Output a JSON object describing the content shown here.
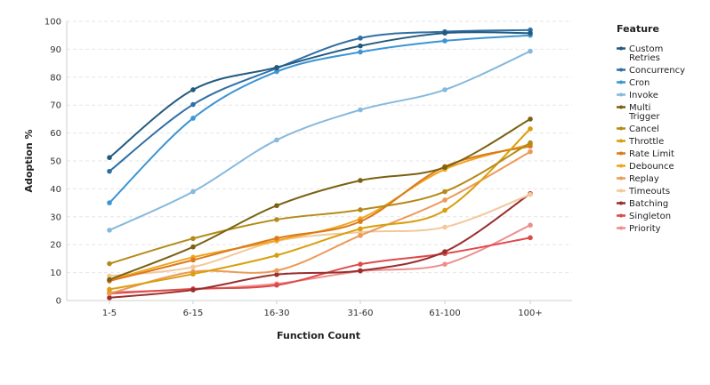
{
  "chart_data": {
    "type": "line",
    "xlabel": "Function Count",
    "ylabel": "Adoption %",
    "categories": [
      "1-5",
      "6-15",
      "16-30",
      "31-60",
      "61-100",
      "100+"
    ],
    "ylim": [
      0,
      100
    ],
    "yticks": [
      "0",
      "10",
      "20",
      "30",
      "40",
      "50",
      "60",
      "70",
      "80",
      "90",
      "100"
    ],
    "grid": true,
    "legend_title": "Feature",
    "legend_position": "right",
    "series": [
      {
        "name": "Custom Retries",
        "legend_lines": [
          "Custom",
          "Retries"
        ],
        "color": "#235a7e",
        "values": [
          51.2,
          75.5,
          83.5,
          91.2,
          95.8,
          95.8
        ]
      },
      {
        "name": "Concurrency",
        "legend_lines": [
          "Concurrency"
        ],
        "color": "#2f6fa6",
        "values": [
          46.3,
          70.2,
          83.2,
          94.0,
          96.3,
          96.9
        ]
      },
      {
        "name": "Cron",
        "legend_lines": [
          "Cron"
        ],
        "color": "#3c95d4",
        "values": [
          35.0,
          65.3,
          82.0,
          89.0,
          93.0,
          95.0
        ]
      },
      {
        "name": "Invoke",
        "legend_lines": [
          "Invoke"
        ],
        "color": "#86b9dc",
        "values": [
          25.2,
          39.0,
          57.5,
          68.3,
          75.5,
          89.3
        ]
      },
      {
        "name": "Multi Trigger",
        "legend_lines": [
          "Multi",
          "Trigger"
        ],
        "color": "#7a6212",
        "values": [
          7.5,
          19.2,
          34.0,
          43.0,
          47.7,
          65.0
        ]
      },
      {
        "name": "Cancel",
        "legend_lines": [
          "Cancel"
        ],
        "color": "#b48a18",
        "values": [
          13.2,
          22.2,
          29.0,
          32.5,
          39.0,
          56.5
        ]
      },
      {
        "name": "Throttle",
        "legend_lines": [
          "Throttle"
        ],
        "color": "#d99f0c",
        "values": [
          4.0,
          9.5,
          16.2,
          25.7,
          32.3,
          61.5
        ]
      },
      {
        "name": "Rate Limit",
        "legend_lines": [
          "Rate Limit"
        ],
        "color": "#db7a1c",
        "values": [
          7.0,
          14.5,
          22.3,
          28.3,
          48.0,
          55.3
        ]
      },
      {
        "name": "Debounce",
        "legend_lines": [
          "Debounce"
        ],
        "color": "#f0a51a",
        "values": [
          7.2,
          15.5,
          21.5,
          29.3,
          47.0,
          56.0
        ]
      },
      {
        "name": "Replay",
        "legend_lines": [
          "Replay"
        ],
        "color": "#ec9a58",
        "values": [
          2.5,
          10.3,
          10.7,
          23.3,
          36.0,
          53.3
        ]
      },
      {
        "name": "Timeouts",
        "legend_lines": [
          "Timeouts"
        ],
        "color": "#f3c89a",
        "values": [
          8.8,
          12.0,
          21.3,
          24.5,
          26.3,
          38.0
        ]
      },
      {
        "name": "Batching",
        "legend_lines": [
          "Batching"
        ],
        "color": "#9a2e2e",
        "values": [
          1.0,
          3.8,
          9.3,
          10.7,
          17.5,
          38.3
        ]
      },
      {
        "name": "Singleton",
        "legend_lines": [
          "Singleton"
        ],
        "color": "#dd4a4a",
        "values": [
          2.5,
          4.2,
          5.5,
          13.0,
          16.8,
          22.5
        ]
      },
      {
        "name": "Priority",
        "legend_lines": [
          "Priority"
        ],
        "color": "#ee8d8d",
        "values": [
          3.0,
          4.0,
          6.0,
          10.5,
          13.0,
          27.0
        ]
      }
    ]
  }
}
